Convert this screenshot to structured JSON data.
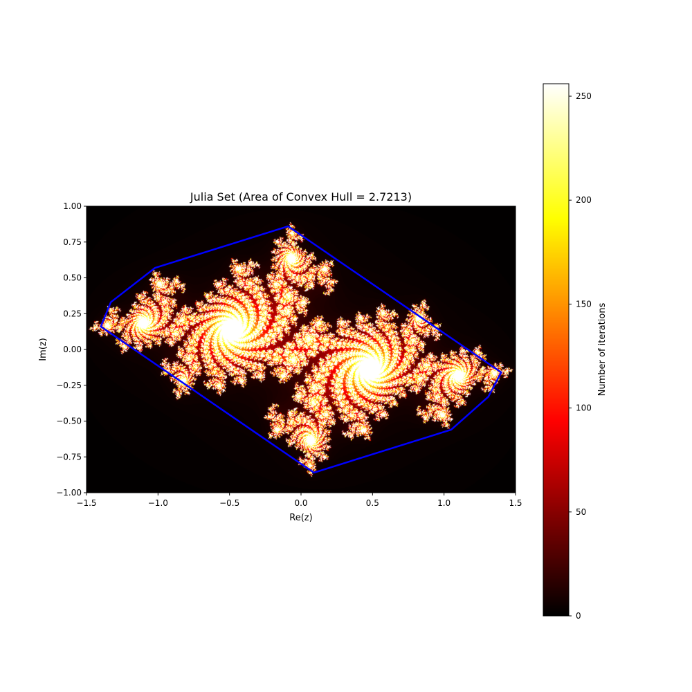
{
  "chart_data": {
    "type": "heatmap",
    "title": "Julia Set (Area of Convex Hull = 2.7213)",
    "xlabel": "Re(z)",
    "ylabel": "Im(z)",
    "xlim": [
      -1.5,
      1.5
    ],
    "ylim": [
      -1.0,
      1.0
    ],
    "xticks": [
      -1.5,
      -1.0,
      -0.5,
      0.0,
      0.5,
      1.0,
      1.5
    ],
    "xtick_labels": [
      "−1.5",
      "−1.0",
      "−0.5",
      "0.0",
      "0.5",
      "1.0",
      "1.5"
    ],
    "yticks": [
      -1.0,
      -0.75,
      -0.5,
      -0.25,
      0.0,
      0.25,
      0.5,
      0.75,
      1.0
    ],
    "ytick_labels": [
      "−1.00",
      "−0.75",
      "−0.50",
      "−0.25",
      "0.00",
      "0.25",
      "0.50",
      "0.75",
      "1.00"
    ],
    "colormap": "hot",
    "max_iterations": 256,
    "hull_color": "#0000ff",
    "convex_hull": [
      [
        -0.09,
        0.86
      ],
      [
        -1.02,
        0.57
      ],
      [
        -1.33,
        0.33
      ],
      [
        -1.4,
        0.16
      ],
      [
        0.09,
        -0.86
      ],
      [
        1.05,
        -0.56
      ],
      [
        1.31,
        -0.33
      ],
      [
        1.4,
        -0.16
      ],
      [
        -0.09,
        0.86
      ]
    ],
    "colorbar": {
      "label": "Number of iterations",
      "range": [
        0,
        256
      ],
      "ticks": [
        0,
        50,
        100,
        150,
        200,
        250
      ],
      "tick_labels": [
        "0",
        "50",
        "100",
        "150",
        "200",
        "250"
      ]
    }
  }
}
